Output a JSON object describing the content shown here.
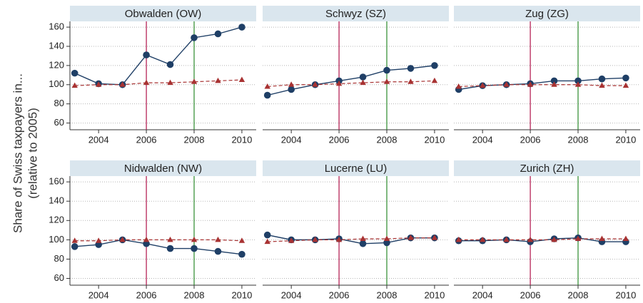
{
  "ylabel": [
    "Share of Swiss taxpayers in...",
    "(relative to 2005)"
  ],
  "chart_data": [
    {
      "type": "line",
      "title": "Obwalden (OW)",
      "x": [
        2003,
        2004,
        2005,
        2006,
        2007,
        2008,
        2009,
        2010
      ],
      "series": [
        {
          "color": "#1f3f66",
          "values": [
            112,
            101,
            100,
            131,
            121,
            149,
            153,
            160
          ]
        },
        {
          "color": "#a83232",
          "values": [
            99,
            100,
            100,
            102,
            102,
            103,
            104,
            105
          ]
        }
      ],
      "xlim": [
        2002.8,
        2010.6
      ],
      "ylim": [
        53,
        166
      ],
      "xticks": [
        2004,
        2006,
        2008,
        2010
      ],
      "yticks": [
        60,
        80,
        100,
        120,
        140,
        160
      ],
      "grid": true,
      "vlines": [
        {
          "x": 2006,
          "color": "#b0134b"
        },
        {
          "x": 2008,
          "color": "#2b8a2b"
        }
      ]
    },
    {
      "type": "line",
      "title": "Schwyz (SZ)",
      "x": [
        2003,
        2004,
        2005,
        2006,
        2007,
        2008,
        2009,
        2010
      ],
      "series": [
        {
          "color": "#1f3f66",
          "values": [
            89,
            95,
            100,
            104,
            108,
            115,
            117,
            120
          ]
        },
        {
          "color": "#a83232",
          "values": [
            98,
            100,
            100,
            101,
            102,
            103,
            103,
            104
          ]
        }
      ],
      "xlim": [
        2002.8,
        2010.6
      ],
      "ylim": [
        53,
        166
      ],
      "xticks": [
        2004,
        2006,
        2008,
        2010
      ],
      "yticks": [
        60,
        80,
        100,
        120,
        140,
        160
      ],
      "grid": true,
      "vlines": [
        {
          "x": 2006,
          "color": "#b0134b"
        },
        {
          "x": 2008,
          "color": "#2b8a2b"
        }
      ]
    },
    {
      "type": "line",
      "title": "Zug (ZG)",
      "x": [
        2003,
        2004,
        2005,
        2006,
        2007,
        2008,
        2009,
        2010
      ],
      "series": [
        {
          "color": "#1f3f66",
          "values": [
            95,
            99,
            100,
            101,
            104,
            104,
            106,
            107
          ]
        },
        {
          "color": "#a83232",
          "values": [
            98,
            99,
            100,
            100,
            100,
            100,
            99,
            99
          ]
        }
      ],
      "xlim": [
        2002.8,
        2010.6
      ],
      "ylim": [
        53,
        166
      ],
      "xticks": [
        2004,
        2006,
        2008,
        2010
      ],
      "yticks": [
        60,
        80,
        100,
        120,
        140,
        160
      ],
      "grid": true,
      "vlines": [
        {
          "x": 2006,
          "color": "#b0134b"
        },
        {
          "x": 2008,
          "color": "#2b8a2b"
        }
      ]
    },
    {
      "type": "line",
      "title": "Nidwalden (NW)",
      "x": [
        2003,
        2004,
        2005,
        2006,
        2007,
        2008,
        2009,
        2010
      ],
      "series": [
        {
          "color": "#1f3f66",
          "values": [
            93,
            95,
            100,
            96,
            91,
            91,
            88,
            85
          ]
        },
        {
          "color": "#a83232",
          "values": [
            99,
            99,
            100,
            100,
            100,
            100,
            100,
            99
          ]
        }
      ],
      "xlim": [
        2002.8,
        2010.6
      ],
      "ylim": [
        53,
        166
      ],
      "xticks": [
        2004,
        2006,
        2008,
        2010
      ],
      "yticks": [
        60,
        80,
        100,
        120,
        140,
        160
      ],
      "grid": true,
      "vlines": [
        {
          "x": 2006,
          "color": "#b0134b"
        },
        {
          "x": 2008,
          "color": "#2b8a2b"
        }
      ]
    },
    {
      "type": "line",
      "title": "Lucerne (LU)",
      "x": [
        2003,
        2004,
        2005,
        2006,
        2007,
        2008,
        2009,
        2010
      ],
      "series": [
        {
          "color": "#1f3f66",
          "values": [
            105,
            100,
            100,
            101,
            96,
            97,
            102,
            102
          ]
        },
        {
          "color": "#a83232",
          "values": [
            98,
            99,
            100,
            100,
            101,
            101,
            102,
            102
          ]
        }
      ],
      "xlim": [
        2002.8,
        2010.6
      ],
      "ylim": [
        53,
        166
      ],
      "xticks": [
        2004,
        2006,
        2008,
        2010
      ],
      "yticks": [
        60,
        80,
        100,
        120,
        140,
        160
      ],
      "grid": true,
      "vlines": [
        {
          "x": 2006,
          "color": "#b0134b"
        },
        {
          "x": 2008,
          "color": "#2b8a2b"
        }
      ]
    },
    {
      "type": "line",
      "title": "Zurich (ZH)",
      "x": [
        2003,
        2004,
        2005,
        2006,
        2007,
        2008,
        2009,
        2010
      ],
      "series": [
        {
          "color": "#1f3f66",
          "values": [
            99,
            99,
            100,
            98,
            101,
            102,
            98,
            98
          ]
        },
        {
          "color": "#a83232",
          "values": [
            100,
            100,
            100,
            100,
            100,
            101,
            101,
            101
          ]
        }
      ],
      "xlim": [
        2002.8,
        2010.6
      ],
      "ylim": [
        53,
        166
      ],
      "xticks": [
        2004,
        2006,
        2008,
        2010
      ],
      "yticks": [
        60,
        80,
        100,
        120,
        140,
        160
      ],
      "grid": true,
      "vlines": [
        {
          "x": 2006,
          "color": "#b0134b"
        },
        {
          "x": 2008,
          "color": "#2b8a2b"
        }
      ]
    }
  ]
}
